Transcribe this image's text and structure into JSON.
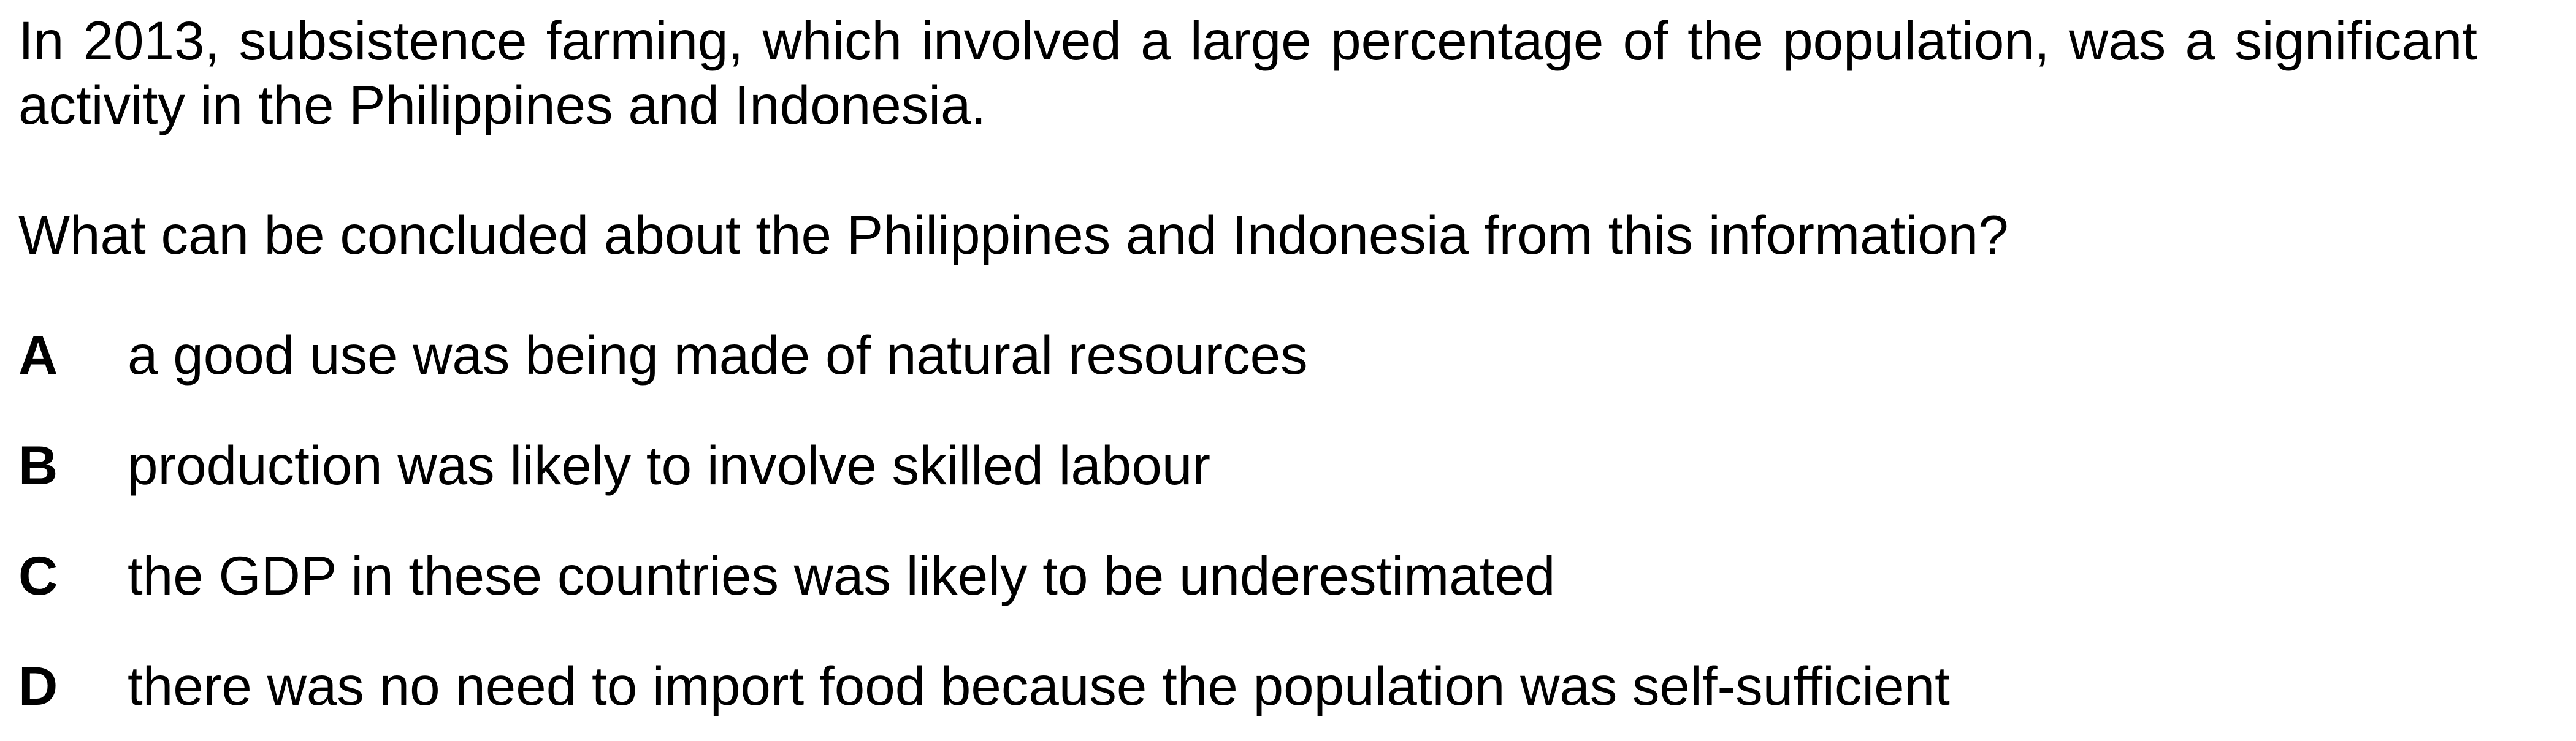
{
  "stem": "In 2013, subsistence farming, which involved a large percentage of the population, was a significant activity in the Philippines and Indonesia.",
  "question": "What can be concluded about the Philippines and Indonesia from this information?",
  "options": [
    {
      "letter": "A",
      "text": "a good use was being made of natural resources"
    },
    {
      "letter": "B",
      "text": "production was likely to involve skilled labour"
    },
    {
      "letter": "C",
      "text": "the GDP in these countries was likely to be underestimated"
    },
    {
      "letter": "D",
      "text": "there was no need to import food because the population was self-sufficient"
    }
  ]
}
